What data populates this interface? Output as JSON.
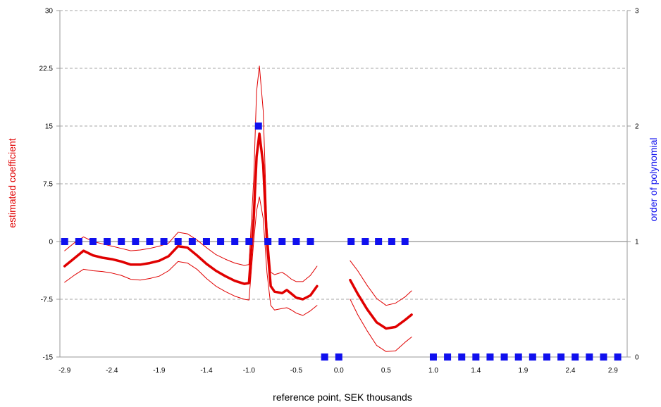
{
  "chart_data": {
    "type": "line",
    "xlabel": "reference point, SEK thousands",
    "ylabel": "estimated coefficient",
    "y2label": "order of polynomial",
    "colors": {
      "primary": "#e00000",
      "secondary": "#1010ee",
      "grid": "#888888",
      "axis": "#999999"
    },
    "xlim": [
      -2.95,
      3.05
    ],
    "ylim": [
      -15,
      30
    ],
    "y2lim": [
      0,
      3
    ],
    "grid": true,
    "x_tick_labels": [
      "-2.9",
      "-2.4",
      "-1.9",
      "-1.4",
      "-1.0",
      "-0.5",
      "0.0",
      "0.5",
      "1.0",
      "1.4",
      "1.9",
      "2.4",
      "2.9"
    ],
    "x_tick_values": [
      -2.9,
      -2.4,
      -1.9,
      -1.4,
      -0.95,
      -0.45,
      0.0,
      0.5,
      1.0,
      1.45,
      1.95,
      2.45,
      2.9
    ],
    "y_tick_labels": [
      "30",
      "22.5",
      "15",
      "7.5",
      "0",
      "-7.5",
      "-15"
    ],
    "y_tick_values": [
      30,
      22.5,
      15,
      7.5,
      0,
      -7.5,
      -15
    ],
    "y2_tick_labels": [
      "3",
      "2",
      "1",
      "0"
    ],
    "y2_tick_values": [
      3,
      2,
      1,
      0
    ],
    "series": [
      {
        "role": "estimate",
        "axis": "left",
        "segments": [
          [
            [
              -2.9,
              -3.2
            ],
            [
              -2.8,
              -2.2
            ],
            [
              -2.7,
              -1.2
            ],
            [
              -2.6,
              -1.8
            ],
            [
              -2.5,
              -2.1
            ],
            [
              -2.4,
              -2.3
            ],
            [
              -2.3,
              -2.6
            ],
            [
              -2.2,
              -3.0
            ],
            [
              -2.1,
              -3.0
            ],
            [
              -2.0,
              -2.8
            ],
            [
              -1.9,
              -2.5
            ],
            [
              -1.8,
              -1.9
            ],
            [
              -1.7,
              -0.6
            ],
            [
              -1.6,
              -0.8
            ],
            [
              -1.5,
              -1.8
            ],
            [
              -1.4,
              -2.9
            ],
            [
              -1.3,
              -3.8
            ],
            [
              -1.2,
              -4.5
            ],
            [
              -1.1,
              -5.1
            ],
            [
              -1.0,
              -5.5
            ],
            [
              -0.95,
              -5.4
            ],
            [
              -0.9,
              3.0
            ],
            [
              -0.87,
              11.0
            ],
            [
              -0.84,
              14.0
            ],
            [
              -0.8,
              10.0
            ],
            [
              -0.76,
              0.0
            ],
            [
              -0.72,
              -5.8
            ],
            [
              -0.68,
              -6.5
            ],
            [
              -0.6,
              -6.7
            ],
            [
              -0.55,
              -6.3
            ],
            [
              -0.5,
              -6.8
            ],
            [
              -0.45,
              -7.3
            ],
            [
              -0.38,
              -7.5
            ],
            [
              -0.3,
              -7.0
            ],
            [
              -0.23,
              -5.8
            ]
          ],
          [
            [
              0.12,
              -5.0
            ],
            [
              0.2,
              -6.8
            ],
            [
              0.3,
              -8.8
            ],
            [
              0.4,
              -10.5
            ],
            [
              0.5,
              -11.3
            ],
            [
              0.6,
              -11.1
            ],
            [
              0.7,
              -10.2
            ],
            [
              0.77,
              -9.5
            ]
          ]
        ]
      },
      {
        "role": "upper-bound",
        "axis": "left",
        "segments": [
          [
            [
              -2.9,
              -1.2
            ],
            [
              -2.8,
              -0.2
            ],
            [
              -2.7,
              0.6
            ],
            [
              -2.6,
              0.0
            ],
            [
              -2.5,
              -0.3
            ],
            [
              -2.4,
              -0.6
            ],
            [
              -2.3,
              -0.9
            ],
            [
              -2.2,
              -1.2
            ],
            [
              -2.1,
              -1.1
            ],
            [
              -2.0,
              -0.9
            ],
            [
              -1.9,
              -0.6
            ],
            [
              -1.8,
              -0.2
            ],
            [
              -1.7,
              1.2
            ],
            [
              -1.6,
              1.0
            ],
            [
              -1.5,
              0.2
            ],
            [
              -1.4,
              -0.8
            ],
            [
              -1.3,
              -1.7
            ],
            [
              -1.2,
              -2.3
            ],
            [
              -1.1,
              -2.8
            ],
            [
              -1.0,
              -3.1
            ],
            [
              -0.95,
              -3.0
            ],
            [
              -0.9,
              8.0
            ],
            [
              -0.87,
              19.5
            ],
            [
              -0.84,
              22.8
            ],
            [
              -0.8,
              17.0
            ],
            [
              -0.76,
              2.0
            ],
            [
              -0.72,
              -4.0
            ],
            [
              -0.68,
              -4.3
            ],
            [
              -0.6,
              -4.0
            ],
            [
              -0.55,
              -4.4
            ],
            [
              -0.5,
              -4.9
            ],
            [
              -0.45,
              -5.2
            ],
            [
              -0.38,
              -5.2
            ],
            [
              -0.3,
              -4.4
            ],
            [
              -0.23,
              -3.2
            ]
          ],
          [
            [
              0.12,
              -2.5
            ],
            [
              0.2,
              -3.8
            ],
            [
              0.3,
              -5.7
            ],
            [
              0.4,
              -7.4
            ],
            [
              0.5,
              -8.3
            ],
            [
              0.6,
              -8.0
            ],
            [
              0.7,
              -7.2
            ],
            [
              0.77,
              -6.4
            ]
          ]
        ]
      },
      {
        "role": "lower-bound",
        "axis": "left",
        "segments": [
          [
            [
              -2.9,
              -5.3
            ],
            [
              -2.8,
              -4.4
            ],
            [
              -2.7,
              -3.6
            ],
            [
              -2.6,
              -3.8
            ],
            [
              -2.5,
              -3.9
            ],
            [
              -2.4,
              -4.1
            ],
            [
              -2.3,
              -4.4
            ],
            [
              -2.2,
              -4.9
            ],
            [
              -2.1,
              -5.0
            ],
            [
              -2.0,
              -4.8
            ],
            [
              -1.9,
              -4.5
            ],
            [
              -1.8,
              -3.8
            ],
            [
              -1.7,
              -2.6
            ],
            [
              -1.6,
              -2.8
            ],
            [
              -1.5,
              -3.6
            ],
            [
              -1.4,
              -4.8
            ],
            [
              -1.3,
              -5.8
            ],
            [
              -1.2,
              -6.5
            ],
            [
              -1.1,
              -7.1
            ],
            [
              -1.0,
              -7.5
            ],
            [
              -0.95,
              -7.6
            ],
            [
              -0.9,
              0.0
            ],
            [
              -0.87,
              4.0
            ],
            [
              -0.84,
              5.8
            ],
            [
              -0.8,
              3.0
            ],
            [
              -0.76,
              -4.0
            ],
            [
              -0.72,
              -8.3
            ],
            [
              -0.68,
              -8.9
            ],
            [
              -0.6,
              -8.7
            ],
            [
              -0.55,
              -8.6
            ],
            [
              -0.5,
              -8.9
            ],
            [
              -0.45,
              -9.3
            ],
            [
              -0.38,
              -9.6
            ],
            [
              -0.3,
              -9.0
            ],
            [
              -0.23,
              -8.3
            ]
          ],
          [
            [
              0.12,
              -7.5
            ],
            [
              0.2,
              -9.5
            ],
            [
              0.3,
              -11.6
            ],
            [
              0.4,
              -13.5
            ],
            [
              0.5,
              -14.3
            ],
            [
              0.6,
              -14.2
            ],
            [
              0.7,
              -13.1
            ],
            [
              0.77,
              -12.4
            ]
          ]
        ]
      },
      {
        "role": "polynomial-order",
        "axis": "right",
        "points": [
          [
            -2.9,
            1
          ],
          [
            -2.75,
            1
          ],
          [
            -2.6,
            1
          ],
          [
            -2.45,
            1
          ],
          [
            -2.3,
            1
          ],
          [
            -2.15,
            1
          ],
          [
            -2.0,
            1
          ],
          [
            -1.85,
            1
          ],
          [
            -1.7,
            1
          ],
          [
            -1.55,
            1
          ],
          [
            -1.4,
            1
          ],
          [
            -1.25,
            1
          ],
          [
            -1.1,
            1
          ],
          [
            -0.95,
            1
          ],
          [
            -0.85,
            2
          ],
          [
            -0.75,
            1
          ],
          [
            -0.6,
            1
          ],
          [
            -0.45,
            1
          ],
          [
            -0.3,
            1
          ],
          [
            -0.15,
            0
          ],
          [
            0.0,
            0
          ],
          [
            0.13,
            1
          ],
          [
            0.28,
            1
          ],
          [
            0.42,
            1
          ],
          [
            0.56,
            1
          ],
          [
            0.7,
            1
          ],
          [
            1.0,
            0
          ],
          [
            1.15,
            0
          ],
          [
            1.3,
            0
          ],
          [
            1.45,
            0
          ],
          [
            1.6,
            0
          ],
          [
            1.75,
            0
          ],
          [
            1.9,
            0
          ],
          [
            2.05,
            0
          ],
          [
            2.2,
            0
          ],
          [
            2.35,
            0
          ],
          [
            2.5,
            0
          ],
          [
            2.65,
            0
          ],
          [
            2.8,
            0
          ],
          [
            2.95,
            0
          ]
        ]
      }
    ]
  }
}
